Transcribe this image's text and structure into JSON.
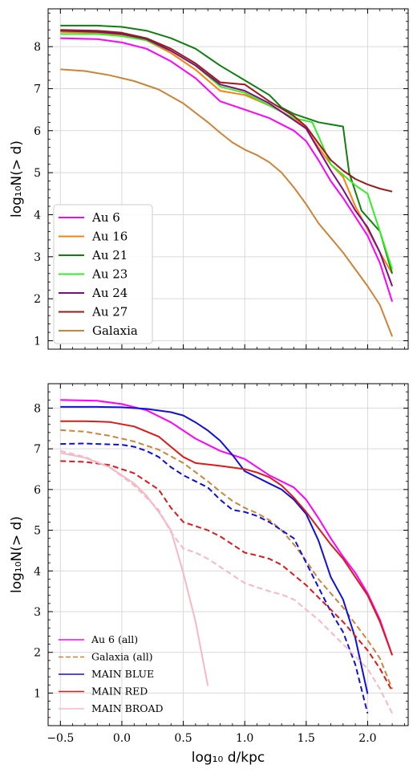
{
  "chart_data": [
    {
      "type": "line",
      "xlabel": "",
      "ylabel": "log₁₀N(> d)",
      "xlim": [
        -0.6,
        2.33
      ],
      "ylim": [
        0.8,
        8.9
      ],
      "xticks": [
        "−0.5",
        "0.0",
        "0.5",
        "1.0",
        "1.5",
        "2.0"
      ],
      "xtick_values": [
        -0.5,
        0.0,
        0.5,
        1.0,
        1.5,
        2.0
      ],
      "show_xtick_labels": false,
      "yticks": [
        "1",
        "2",
        "3",
        "4",
        "5",
        "6",
        "7",
        "8"
      ],
      "ytick_values": [
        1,
        2,
        3,
        4,
        5,
        6,
        7,
        8
      ],
      "grid": true,
      "legend_position": "lower-left",
      "series": [
        {
          "name": "Au 6",
          "color": "#ff00ff",
          "dash": "solid",
          "x": [
            -0.5,
            -0.2,
            0.0,
            0.2,
            0.4,
            0.6,
            0.8,
            1.0,
            1.2,
            1.4,
            1.5,
            1.6,
            1.7,
            1.8,
            1.9,
            2.0,
            2.1,
            2.2
          ],
          "y": [
            8.2,
            8.18,
            8.1,
            7.95,
            7.65,
            7.25,
            6.7,
            6.5,
            6.3,
            6.0,
            5.75,
            5.3,
            4.8,
            4.4,
            3.95,
            3.5,
            2.85,
            1.93
          ]
        },
        {
          "name": "Au 16",
          "color": "#ff7f0e",
          "dash": "solid",
          "x": [
            -0.5,
            -0.2,
            0.0,
            0.2,
            0.4,
            0.6,
            0.8,
            1.0,
            1.2,
            1.4,
            1.5,
            1.6,
            1.7,
            1.8,
            1.9,
            2.0,
            2.1,
            2.2
          ],
          "y": [
            8.35,
            8.33,
            8.28,
            8.15,
            7.85,
            7.45,
            6.95,
            6.85,
            6.6,
            6.3,
            6.05,
            5.6,
            5.2,
            4.9,
            4.2,
            3.65,
            3.1,
            2.6
          ]
        },
        {
          "name": "Au 21",
          "color": "#107e10",
          "dash": "solid",
          "x": [
            -0.5,
            -0.2,
            0.0,
            0.2,
            0.4,
            0.6,
            0.8,
            1.0,
            1.2,
            1.3,
            1.4,
            1.5,
            1.6,
            1.7,
            1.8,
            1.85,
            1.95,
            2.1,
            2.2
          ],
          "y": [
            8.5,
            8.5,
            8.47,
            8.38,
            8.2,
            7.95,
            7.55,
            7.2,
            6.85,
            6.55,
            6.4,
            6.3,
            6.2,
            6.15,
            6.1,
            5.0,
            4.1,
            3.6,
            2.6
          ]
        },
        {
          "name": "Au 23",
          "color": "#33ee22",
          "dash": "solid",
          "x": [
            -0.5,
            -0.2,
            0.0,
            0.2,
            0.4,
            0.6,
            0.8,
            1.0,
            1.2,
            1.4,
            1.55,
            1.7,
            1.9,
            2.0,
            2.1,
            2.2
          ],
          "y": [
            8.3,
            8.3,
            8.25,
            8.15,
            7.9,
            7.55,
            7.05,
            6.9,
            6.6,
            6.3,
            6.2,
            5.2,
            4.7,
            4.5,
            3.6,
            2.7
          ]
        },
        {
          "name": "Au 24",
          "color": "#7e0e7e",
          "dash": "solid",
          "x": [
            -0.5,
            -0.2,
            0.0,
            0.2,
            0.4,
            0.6,
            0.8,
            1.0,
            1.2,
            1.4,
            1.5,
            1.6,
            1.7,
            1.8,
            1.9,
            2.0,
            2.1,
            2.2
          ],
          "y": [
            8.38,
            8.35,
            8.3,
            8.18,
            7.9,
            7.55,
            7.1,
            6.95,
            6.65,
            6.25,
            6.05,
            5.55,
            5.05,
            4.6,
            4.1,
            3.7,
            3.1,
            2.3
          ]
        },
        {
          "name": "Au 27",
          "color": "#9a1b1b",
          "dash": "solid",
          "x": [
            -0.5,
            -0.2,
            0.0,
            0.2,
            0.4,
            0.6,
            0.8,
            1.0,
            1.2,
            1.4,
            1.5,
            1.6,
            1.7,
            1.8,
            1.9,
            2.0,
            2.1,
            2.2
          ],
          "y": [
            8.4,
            8.38,
            8.33,
            8.2,
            7.95,
            7.6,
            7.15,
            7.1,
            6.7,
            6.35,
            6.1,
            5.7,
            5.3,
            5.05,
            4.85,
            4.72,
            4.62,
            4.55
          ]
        },
        {
          "name": "Galaxia",
          "color": "#cd8438",
          "dash": "solid",
          "x": [
            -0.5,
            -0.3,
            -0.1,
            0.1,
            0.3,
            0.5,
            0.7,
            0.8,
            0.9,
            1.0,
            1.1,
            1.2,
            1.3,
            1.4,
            1.5,
            1.6,
            1.7,
            1.8,
            1.9,
            2.0,
            2.1,
            2.2
          ],
          "y": [
            7.46,
            7.42,
            7.32,
            7.18,
            6.98,
            6.65,
            6.2,
            5.95,
            5.72,
            5.55,
            5.42,
            5.25,
            5.0,
            4.65,
            4.25,
            3.8,
            3.45,
            3.1,
            2.7,
            2.3,
            1.85,
            1.1
          ]
        }
      ]
    },
    {
      "type": "line",
      "xlabel": "log₁₀ d/kpc",
      "ylabel": "log₁₀N(> d)",
      "xlim": [
        -0.6,
        2.33
      ],
      "ylim": [
        0.2,
        8.6
      ],
      "xticks": [
        "−0.5",
        "0.0",
        "0.5",
        "1.0",
        "1.5",
        "2.0"
      ],
      "xtick_values": [
        -0.5,
        0.0,
        0.5,
        1.0,
        1.5,
        2.0
      ],
      "show_xtick_labels": true,
      "yticks": [
        "1",
        "2",
        "3",
        "4",
        "5",
        "6",
        "7",
        "8"
      ],
      "ytick_values": [
        1,
        2,
        3,
        4,
        5,
        6,
        7,
        8
      ],
      "grid": true,
      "legend_position": "lower-left",
      "series": [
        {
          "name": "Au 6 (all)",
          "color": "#ff00ff",
          "dash": "solid",
          "x": [
            -0.5,
            -0.2,
            0.0,
            0.2,
            0.4,
            0.6,
            0.8,
            1.0,
            1.2,
            1.4,
            1.5,
            1.6,
            1.7,
            1.8,
            1.9,
            2.0,
            2.1,
            2.2
          ],
          "y": [
            8.2,
            8.18,
            8.1,
            7.95,
            7.65,
            7.25,
            6.95,
            6.75,
            6.35,
            6.05,
            5.75,
            5.3,
            4.8,
            4.35,
            3.95,
            3.45,
            2.8,
            1.93
          ]
        },
        {
          "name": "Galaxia (all)",
          "color": "#cd8438",
          "dash": "dashed",
          "x": [
            -0.5,
            -0.3,
            -0.1,
            0.1,
            0.3,
            0.5,
            0.7,
            0.8,
            0.9,
            1.0,
            1.1,
            1.2,
            1.3,
            1.4,
            1.5,
            1.6,
            1.7,
            1.8,
            1.9,
            2.0,
            2.1,
            2.2
          ],
          "y": [
            7.46,
            7.42,
            7.32,
            7.18,
            6.98,
            6.65,
            6.2,
            5.95,
            5.72,
            5.55,
            5.42,
            5.25,
            5.0,
            4.65,
            4.25,
            3.8,
            3.45,
            3.1,
            2.7,
            2.3,
            1.85,
            1.1
          ]
        },
        {
          "name": "MAIN BLUE",
          "color": "#1010dd",
          "dash": "solid",
          "x": [
            -0.5,
            -0.2,
            0.0,
            0.2,
            0.4,
            0.5,
            0.6,
            0.7,
            0.8,
            0.9,
            1.0,
            1.1,
            1.2,
            1.3,
            1.4,
            1.5,
            1.6,
            1.7,
            1.8,
            1.9,
            2.0
          ],
          "y": [
            8.03,
            8.03,
            8.02,
            7.98,
            7.9,
            7.82,
            7.65,
            7.45,
            7.2,
            6.85,
            6.45,
            6.3,
            6.15,
            6.0,
            5.75,
            5.4,
            4.75,
            3.85,
            3.3,
            2.35,
            0.98
          ]
        },
        {
          "name": "MAIN BLUE",
          "color": "#1010dd",
          "dash": "dashed",
          "x": [
            -0.5,
            -0.3,
            -0.2,
            0.0,
            0.1,
            0.2,
            0.3,
            0.4,
            0.5,
            0.6,
            0.7,
            0.8,
            0.9,
            1.0,
            1.1,
            1.2,
            1.3,
            1.4,
            1.5,
            1.6,
            1.7,
            1.8,
            1.9,
            2.0
          ],
          "y": [
            7.12,
            7.13,
            7.12,
            7.1,
            7.05,
            6.95,
            6.8,
            6.55,
            6.35,
            6.2,
            6.05,
            5.75,
            5.5,
            5.45,
            5.35,
            5.2,
            5.0,
            4.8,
            4.2,
            3.6,
            3.0,
            2.5,
            1.7,
            0.5
          ]
        },
        {
          "name": "MAIN RED",
          "color": "#dd1a1a",
          "dash": "solid",
          "x": [
            -0.5,
            -0.3,
            -0.1,
            0.1,
            0.3,
            0.4,
            0.5,
            0.6,
            0.8,
            1.0,
            1.1,
            1.2,
            1.3,
            1.4,
            1.5,
            1.6,
            1.7,
            1.8,
            1.9,
            2.0,
            2.1,
            2.2
          ],
          "y": [
            7.68,
            7.68,
            7.66,
            7.55,
            7.3,
            7.05,
            6.8,
            6.65,
            6.58,
            6.5,
            6.42,
            6.3,
            6.1,
            5.8,
            5.45,
            5.05,
            4.65,
            4.3,
            3.85,
            3.4,
            2.75,
            1.93
          ]
        },
        {
          "name": "MAIN RED",
          "color": "#dd1a1a",
          "dash": "dashed",
          "x": [
            -0.5,
            -0.3,
            -0.1,
            0.1,
            0.3,
            0.4,
            0.5,
            0.6,
            0.7,
            0.8,
            0.9,
            1.0,
            1.1,
            1.2,
            1.3,
            1.4,
            1.5,
            1.6,
            1.7,
            1.8,
            1.9,
            2.0,
            2.1,
            2.2
          ],
          "y": [
            6.7,
            6.68,
            6.6,
            6.4,
            6.0,
            5.55,
            5.2,
            5.1,
            5.0,
            4.85,
            4.65,
            4.45,
            4.38,
            4.3,
            4.15,
            3.9,
            3.65,
            3.35,
            3.05,
            2.75,
            2.4,
            2.05,
            1.6,
            1.05
          ]
        },
        {
          "name": "MAIN BROAD",
          "color": "#f6b8c4",
          "dash": "solid",
          "x": [
            -0.5,
            -0.3,
            -0.1,
            0.1,
            0.2,
            0.3,
            0.4,
            0.5,
            0.6,
            0.7
          ],
          "y": [
            6.9,
            6.78,
            6.55,
            6.15,
            5.85,
            5.45,
            5.0,
            3.95,
            2.75,
            1.18
          ]
        },
        {
          "name": "MAIN BROAD",
          "color": "#f6b8c4",
          "dash": "dashed",
          "x": [
            -0.5,
            -0.3,
            -0.1,
            0.1,
            0.3,
            0.4,
            0.5,
            0.6,
            0.7,
            0.8,
            0.9,
            1.0,
            1.1,
            1.2,
            1.3,
            1.4,
            1.5,
            1.6,
            1.7,
            1.8,
            1.9,
            2.0,
            2.1,
            2.2
          ],
          "y": [
            6.95,
            6.8,
            6.55,
            6.1,
            5.5,
            4.95,
            4.55,
            4.45,
            4.3,
            4.1,
            3.9,
            3.7,
            3.6,
            3.5,
            3.42,
            3.3,
            3.05,
            2.8,
            2.5,
            2.2,
            1.9,
            1.6,
            1.1,
            0.5
          ]
        }
      ],
      "legend": [
        {
          "name": "Au 6 (all)",
          "color": "#ff00ff",
          "dash": "solid"
        },
        {
          "name": "Galaxia (all)",
          "color": "#cd8438",
          "dash": "dashed"
        },
        {
          "name": "MAIN BLUE",
          "color": "#1010dd",
          "dash": "solid"
        },
        {
          "name": "MAIN RED",
          "color": "#dd1a1a",
          "dash": "solid"
        },
        {
          "name": "MAIN BROAD",
          "color": "#f6b8c4",
          "dash": "solid"
        }
      ]
    }
  ]
}
